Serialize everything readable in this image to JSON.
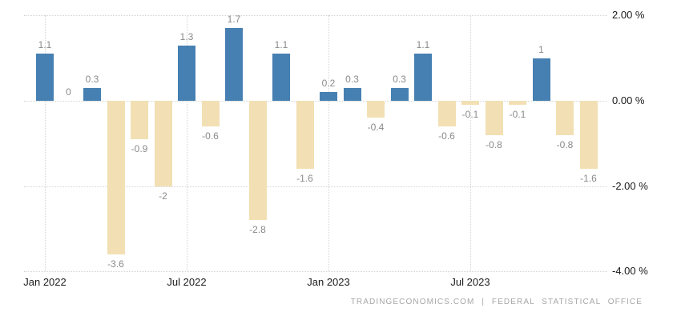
{
  "chart_data": {
    "type": "bar",
    "title": "",
    "values": [
      1.1,
      0,
      0.3,
      -3.6,
      -0.9,
      -2,
      1.3,
      -0.6,
      1.7,
      -2.8,
      1.1,
      -1.6,
      0.2,
      0.3,
      -0.4,
      0.3,
      1.1,
      -0.6,
      -0.1,
      -0.8,
      -0.1,
      1,
      -0.8,
      -1.6
    ],
    "bar_labels": [
      "1.1",
      "0",
      "0.3",
      "-3.6",
      "-0.9",
      "-2",
      "1.3",
      "-0.6",
      "1.7",
      "-2.8",
      "1.1",
      "-1.6",
      "0.2",
      "0.3",
      "-0.4",
      "0.3",
      "1.1",
      "-0.6",
      "-0.1",
      "-0.8",
      "-0.1",
      "1",
      "-0.8",
      "-1.6"
    ],
    "x_ticks": [
      {
        "label": "Jan 2022",
        "index": 0
      },
      {
        "label": "Jul 2022",
        "index": 6
      },
      {
        "label": "Jan 2023",
        "index": 12
      },
      {
        "label": "Jul 2023",
        "index": 18
      }
    ],
    "y_ticks": [
      {
        "label": "2.00 %",
        "value": 2
      },
      {
        "label": "0.00 %",
        "value": 0
      },
      {
        "label": "-2.00 %",
        "value": -2
      },
      {
        "label": "-4.00 %",
        "value": -4
      }
    ],
    "ylim": [
      -4,
      2
    ],
    "grid": "dotted",
    "legend": "none",
    "colors": {
      "positive_bar": "#4680b2",
      "negative_bar": "#f2e0b4",
      "value_label": "#8a8a8a",
      "axis_label": "#1a1a1a",
      "gridline": "#d4d4d4",
      "background": "#ffffff",
      "attribution_text": "#a6a6a6"
    }
  },
  "footer": {
    "attribution": "TRADINGECONOMICS.COM | FEDERAL STATISTICAL OFFICE"
  }
}
